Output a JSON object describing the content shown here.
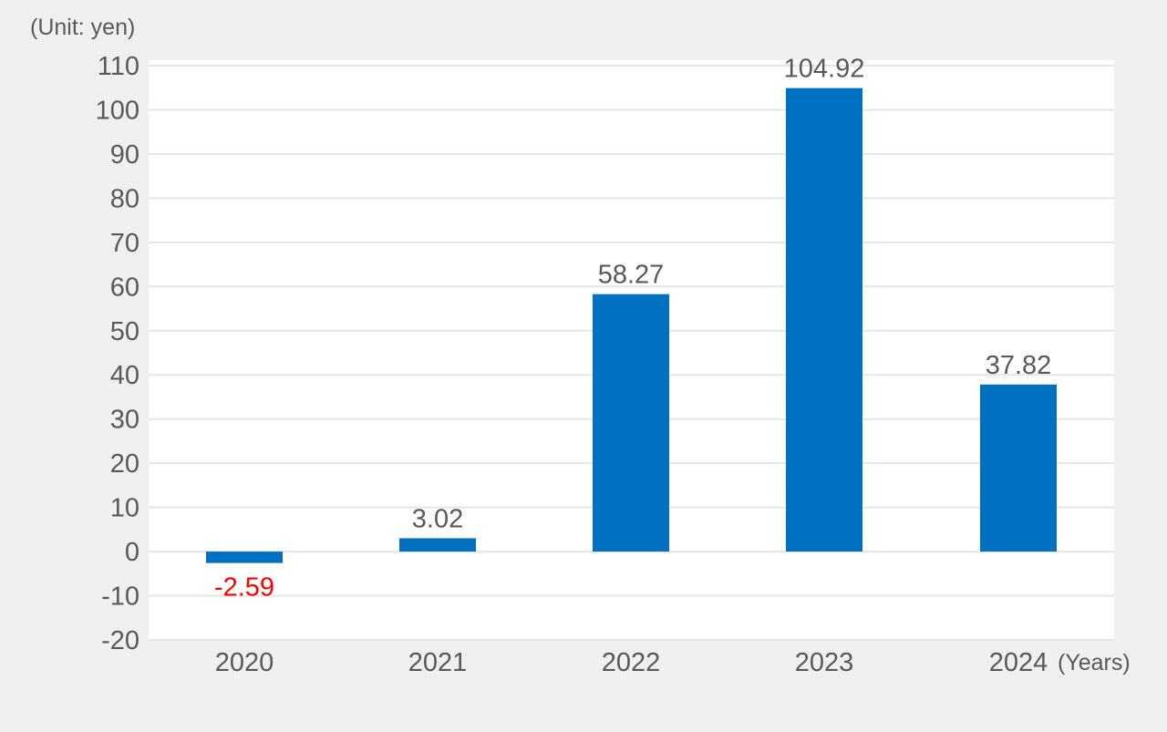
{
  "chart_data": {
    "type": "bar",
    "unit_label": "(Unit: yen)",
    "x_unit_label": "(Years)",
    "categories": [
      "2020",
      "2021",
      "2022",
      "2023",
      "2024"
    ],
    "values": [
      -2.59,
      3.02,
      58.27,
      104.92,
      37.82
    ],
    "value_labels": [
      "-2.59",
      "3.02",
      "58.27",
      "104.92",
      "37.82"
    ],
    "ylim": [
      -20,
      110
    ],
    "yticks": [
      "110",
      "100",
      "90",
      "80",
      "70",
      "60",
      "50",
      "40",
      "30",
      "20",
      "10",
      "0",
      "-10",
      "-20"
    ],
    "ytick_values": [
      110,
      100,
      90,
      80,
      70,
      60,
      50,
      40,
      30,
      20,
      10,
      0,
      -10,
      -20
    ],
    "grid": true,
    "colors": {
      "bar": "#0070c0",
      "positive_label": "#595959",
      "negative_label": "#ff0000",
      "plot_bg": "#ffffff",
      "page_bg": "#f0f0f0",
      "grid": "#e5e5e5"
    }
  }
}
